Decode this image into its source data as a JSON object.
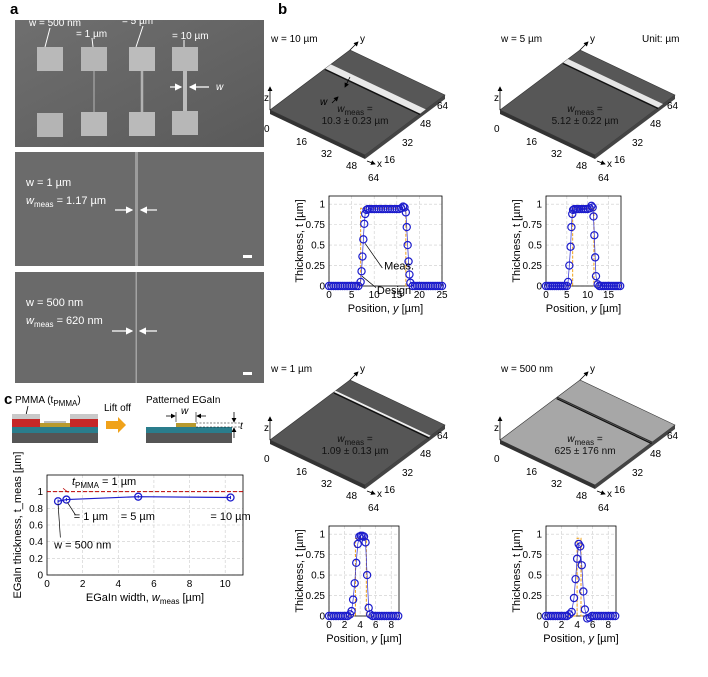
{
  "panels": {
    "a": {
      "label": "a",
      "top": {
        "w1": "w = 500 nm",
        "w2": "= 1 µm",
        "w3": "= 5 µm",
        "w4": "= 10 µm",
        "w_arrow": "w"
      },
      "mid": {
        "w": "w = 1 µm",
        "meas_pre": "w",
        "meas_sub": "meas",
        "meas_val": " = 1.17 µm"
      },
      "bot": {
        "w": "w = 500 nm",
        "meas_pre": "w",
        "meas_sub": "meas",
        "meas_val": " = 620 nm"
      }
    },
    "b": {
      "label": "b",
      "unit": "Unit: µm",
      "surfaces": [
        {
          "title": "w = 10 µm",
          "meas_pre": "w",
          "meas_sub": "meas",
          "meas_eq": " =",
          "meas_val": "10.3 ± 0.23 µm",
          "w_label": "w"
        },
        {
          "title": "w = 5 µm",
          "meas_pre": "w",
          "meas_sub": "meas",
          "meas_eq": " =",
          "meas_val": "5.12 ± 0.22 µm"
        },
        {
          "title": "w = 1 µm",
          "meas_pre": "w",
          "meas_sub": "meas",
          "meas_eq": " =",
          "meas_val": "1.09 ± 0.13 µm"
        },
        {
          "title": "w = 500 nm",
          "meas_pre": "w",
          "meas_sub": "meas",
          "meas_eq": " =",
          "meas_val": "625 ± 176 nm"
        }
      ],
      "axes3d": {
        "y": "y",
        "z": "z",
        "x": "x",
        "zero": "0",
        "t16": "16",
        "t32": "32",
        "t48": "48",
        "t64": "64"
      },
      "legend": {
        "meas": "Meas.",
        "design": "Design"
      }
    },
    "c": {
      "label": "c",
      "pmma_pre": "PMMA (t",
      "pmma_sub": "PMMA",
      "pmma_post": ")",
      "patterned": "Patterned EGaIn",
      "liftoff": "Lift off",
      "w": "w",
      "t": "t",
      "tpmma_pre": "t",
      "tpmma_sub": "PMMA",
      "tpmma_post": " = 1 µm",
      "annot_500": "w = 500 nm",
      "annot_1": "= 1 µm",
      "annot_5": "= 5 µm",
      "annot_10": "= 10 µm"
    }
  },
  "chart_data": [
    {
      "type": "line",
      "panel": "b-1",
      "xlabel_pre": "Position, ",
      "xlabel_var": "y",
      "xlabel_unit": " [µm]",
      "ylabel": "Thickness, t [µm]",
      "xlim": [
        0,
        25
      ],
      "ylim": [
        0,
        1.1
      ],
      "xticks": [
        "0",
        "5",
        "10",
        "15",
        "20",
        "25"
      ],
      "yticks": [
        "0",
        "0.25",
        "0.5",
        "0.75",
        "1"
      ],
      "xtick_values": [
        0,
        5,
        10,
        15,
        20,
        25
      ],
      "ytick_values": [
        0,
        0.25,
        0.5,
        0.75,
        1
      ],
      "design": {
        "x": [
          0,
          7.0,
          7.0,
          17.0,
          17.0,
          25
        ],
        "y": [
          0,
          0,
          0.95,
          0.95,
          0,
          0
        ]
      },
      "measured": {
        "x": [
          0,
          0.5,
          1,
          1.5,
          2,
          2.5,
          3,
          3.5,
          4,
          4.5,
          5,
          5.5,
          6,
          6.5,
          7,
          7.2,
          7.4,
          7.6,
          7.8,
          8,
          8.3,
          8.6,
          9,
          9.5,
          10,
          10.5,
          11,
          11.5,
          12,
          12.5,
          13,
          13.5,
          14,
          14.5,
          15,
          15.5,
          16,
          16.4,
          16.7,
          17,
          17.2,
          17.4,
          17.6,
          17.8,
          18,
          18.5,
          19,
          19.5,
          20,
          20.5,
          21,
          21.5,
          22,
          22.5,
          23,
          23.5,
          24,
          24.5,
          25
        ],
        "y": [
          0,
          0,
          0,
          0,
          0,
          0,
          0,
          0,
          0,
          0,
          0,
          0,
          0,
          0,
          0.05,
          0.18,
          0.36,
          0.57,
          0.76,
          0.88,
          0.93,
          0.94,
          0.94,
          0.94,
          0.94,
          0.94,
          0.94,
          0.94,
          0.94,
          0.94,
          0.94,
          0.94,
          0.94,
          0.94,
          0.94,
          0.94,
          0.95,
          0.97,
          0.96,
          0.9,
          0.72,
          0.5,
          0.3,
          0.14,
          0.04,
          0,
          0,
          0,
          0,
          0,
          0,
          0,
          0,
          0,
          0,
          0,
          0,
          0,
          0
        ]
      }
    },
    {
      "type": "line",
      "panel": "b-2",
      "xlabel_pre": "Position, ",
      "xlabel_var": "y",
      "xlabel_unit": " [µm]",
      "ylabel": "Thickness, t [µm]",
      "xlim": [
        0,
        18
      ],
      "ylim": [
        0,
        1.1
      ],
      "xticks": [
        "0",
        "5",
        "10",
        "15"
      ],
      "yticks": [
        "0",
        "0.25",
        "0.5",
        "0.75",
        "1"
      ],
      "xtick_values": [
        0,
        5,
        10,
        15
      ],
      "ytick_values": [
        0,
        0.25,
        0.5,
        0.75,
        1
      ],
      "design": {
        "x": [
          0,
          6.4,
          6.4,
          11.5,
          11.5,
          18
        ],
        "y": [
          0,
          0,
          0.95,
          0.95,
          0,
          0
        ]
      },
      "measured": {
        "x": [
          0,
          0.5,
          1,
          1.5,
          2,
          2.5,
          3,
          3.5,
          4,
          4.5,
          5,
          5.3,
          5.6,
          5.9,
          6.1,
          6.3,
          6.5,
          6.8,
          7.2,
          7.6,
          8,
          8.5,
          9,
          9.5,
          10,
          10.5,
          10.9,
          11.2,
          11.4,
          11.6,
          11.8,
          12,
          12.4,
          12.8,
          13.3,
          13.8,
          14.3,
          14.8,
          15.3,
          15.8,
          16.3,
          16.8,
          17.3,
          17.8
        ],
        "y": [
          0,
          0,
          0,
          0,
          0,
          0,
          0,
          0,
          0,
          0,
          0,
          0.05,
          0.25,
          0.48,
          0.72,
          0.88,
          0.93,
          0.94,
          0.94,
          0.94,
          0.94,
          0.94,
          0.94,
          0.94,
          0.94,
          0.95,
          0.98,
          0.96,
          0.85,
          0.62,
          0.35,
          0.12,
          0.02,
          0,
          0,
          0,
          0,
          0,
          0,
          0,
          0,
          0,
          0,
          0
        ]
      }
    },
    {
      "type": "line",
      "panel": "b-3",
      "xlabel_pre": "Position, ",
      "xlabel_var": "y",
      "xlabel_unit": " [µm]",
      "ylabel": "Thickness, t [µm]",
      "xlim": [
        0,
        9
      ],
      "ylim": [
        0,
        1.1
      ],
      "xticks": [
        "0",
        "2",
        "4",
        "6",
        "8"
      ],
      "yticks": [
        "0",
        "0.25",
        "0.5",
        "0.75",
        "1"
      ],
      "xtick_values": [
        0,
        2,
        4,
        6,
        8
      ],
      "ytick_values": [
        0,
        0.25,
        0.5,
        0.75,
        1
      ],
      "design": {
        "x": [
          0,
          3.4,
          3.4,
          4.8,
          4.8,
          9
        ],
        "y": [
          0,
          0,
          0.95,
          0.95,
          0,
          0
        ]
      },
      "measured": {
        "x": [
          0,
          0.3,
          0.6,
          0.9,
          1.2,
          1.5,
          1.8,
          2.1,
          2.4,
          2.7,
          2.9,
          3.1,
          3.3,
          3.5,
          3.7,
          3.9,
          4.1,
          4.3,
          4.5,
          4.7,
          4.9,
          5.1,
          5.3,
          5.6,
          5.9,
          6.2,
          6.5,
          6.8,
          7.1,
          7.4,
          7.7,
          8,
          8.3,
          8.6,
          8.9
        ],
        "y": [
          0,
          0,
          0,
          0,
          0,
          0,
          0,
          0,
          0,
          0.02,
          0.06,
          0.2,
          0.4,
          0.65,
          0.88,
          0.97,
          0.98,
          0.98,
          0.97,
          0.9,
          0.5,
          0.1,
          0.02,
          0,
          0,
          0,
          0,
          0,
          0,
          0,
          0,
          0,
          0,
          0,
          0
        ]
      }
    },
    {
      "type": "line",
      "panel": "b-4",
      "xlabel_pre": "Position, ",
      "xlabel_var": "y",
      "xlabel_unit": " [µm]",
      "ylabel": "Thickness, t [µm]",
      "xlim": [
        0,
        9
      ],
      "ylim": [
        0,
        1.1
      ],
      "xticks": [
        "0",
        "2",
        "4",
        "6",
        "8"
      ],
      "yticks": [
        "0",
        "0.25",
        "0.5",
        "0.75",
        "1"
      ],
      "xtick_values": [
        0,
        2,
        4,
        6,
        8
      ],
      "ytick_values": [
        0,
        0.25,
        0.5,
        0.75,
        1
      ],
      "design": {
        "x": [
          0,
          4.0,
          4.0,
          4.5,
          4.5,
          9
        ],
        "y": [
          0,
          0,
          0.95,
          0.95,
          0,
          0
        ]
      },
      "measured": {
        "x": [
          0,
          0.3,
          0.6,
          0.9,
          1.2,
          1.5,
          1.8,
          2.1,
          2.4,
          2.7,
          3.0,
          3.3,
          3.6,
          3.8,
          4.0,
          4.2,
          4.4,
          4.6,
          4.8,
          5.0,
          5.3,
          5.6,
          5.9,
          6.2,
          6.5,
          6.8,
          7.1,
          7.4,
          7.7,
          8.0,
          8.3,
          8.6,
          8.9
        ],
        "y": [
          0,
          0,
          0,
          0,
          0,
          0,
          0,
          0,
          0,
          0,
          0.02,
          0.05,
          0.22,
          0.45,
          0.7,
          0.88,
          0.85,
          0.62,
          0.3,
          0.08,
          -0.03,
          -0.02,
          0,
          0,
          0,
          0,
          0,
          0,
          0,
          0,
          0,
          0,
          0
        ]
      }
    },
    {
      "type": "line",
      "panel": "c",
      "xlabel_pre": "EGaIn width, ",
      "xlabel_var": "w",
      "xlabel_sub": "meas",
      "xlabel_unit": " [µm]",
      "ylabel": "EGaIn thickness, t_meas [µm]",
      "xlim": [
        0,
        11
      ],
      "ylim": [
        0,
        1.2
      ],
      "xticks": [
        "0",
        "2",
        "4",
        "6",
        "8",
        "10"
      ],
      "yticks": [
        "0",
        "0.2",
        "0.4",
        "0.6",
        "0.8",
        "1"
      ],
      "xtick_values": [
        0,
        2,
        4,
        6,
        8,
        10
      ],
      "ytick_values": [
        0,
        0.2,
        0.4,
        0.6,
        0.8,
        1
      ],
      "reference_line": {
        "y": 1.0
      },
      "series": [
        {
          "name": "EGaIn thickness",
          "x": [
            0.62,
            1.09,
            5.12,
            10.3
          ],
          "y": [
            0.885,
            0.905,
            0.94,
            0.93
          ],
          "err": [
            0.02,
            0.02,
            0.02,
            0.02
          ]
        }
      ]
    }
  ]
}
